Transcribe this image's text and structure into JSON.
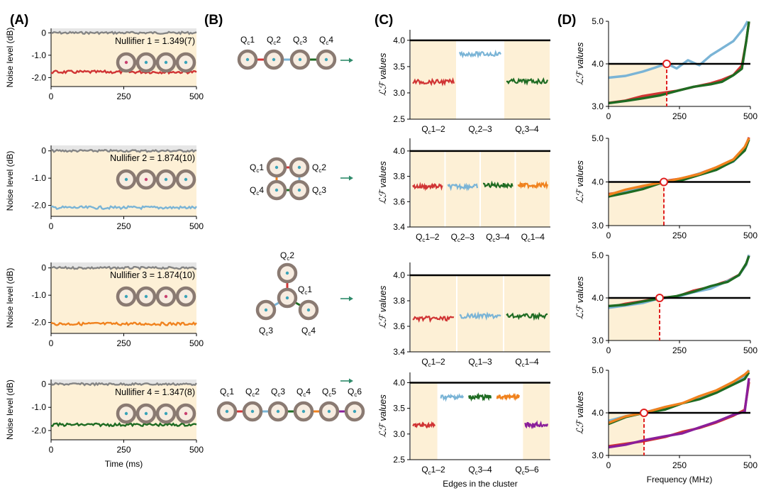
{
  "colors": {
    "red": "#d03434",
    "blue": "#7ab4d6",
    "orange": "#f0821e",
    "green": "#1e6b22",
    "purple": "#8a1e9a",
    "gray": "#848484",
    "shade": "#fdf0d6",
    "shade_gray": "#e6e6e6",
    "arrow": "#2e8a6a"
  },
  "panels": {
    "A": {
      "label": "(A)"
    },
    "B": {
      "label": "(B)"
    },
    "C": {
      "label": "(C)"
    },
    "D": {
      "label": "(D)"
    }
  },
  "chart_data": [
    {
      "panel": "A",
      "type": "line",
      "row": 1,
      "ylabel": "Noise level (dB)",
      "xlabel": "",
      "xlim": [
        0,
        500
      ],
      "ylim": [
        -2.4,
        0.2
      ],
      "xticks": [
        "0",
        "250",
        "500"
      ],
      "yticks": [
        "0",
        "-1.0",
        "-2.0"
      ],
      "annotation": "Nullifier 1 = 1.349(7)",
      "series": [
        {
          "color": "gray",
          "y": 0.0
        },
        {
          "color": "red",
          "y": -1.75
        }
      ]
    },
    {
      "panel": "A",
      "type": "line",
      "row": 2,
      "ylabel": "Noise level (dB)",
      "xlabel": "",
      "xlim": [
        0,
        500
      ],
      "ylim": [
        -2.4,
        0.2
      ],
      "xticks": [
        "0",
        "250",
        "500"
      ],
      "yticks": [
        "0",
        "-1.0",
        "-2.0"
      ],
      "annotation": "Nullifier 2 = 1.874(10)",
      "series": [
        {
          "color": "gray",
          "y": 0.0
        },
        {
          "color": "blue",
          "y": -2.08
        }
      ]
    },
    {
      "panel": "A",
      "type": "line",
      "row": 3,
      "ylabel": "Noise level (dB)",
      "xlabel": "",
      "xlim": [
        0,
        500
      ],
      "ylim": [
        -2.4,
        0.2
      ],
      "xticks": [
        "0",
        "250",
        "500"
      ],
      "yticks": [
        "0",
        "-1.0",
        "-2.0"
      ],
      "annotation": "Nullifier 3 = 1.874(10)",
      "series": [
        {
          "color": "gray",
          "y": 0.0
        },
        {
          "color": "orange",
          "y": -2.05
        }
      ]
    },
    {
      "panel": "A",
      "type": "line",
      "row": 4,
      "ylabel": "Noise level (dB)",
      "xlabel": "Time (ms)",
      "xlim": [
        0,
        500
      ],
      "ylim": [
        -2.4,
        0.2
      ],
      "xticks": [
        "0",
        "250",
        "500"
      ],
      "yticks": [
        "0",
        "-1.0",
        "-2.0"
      ],
      "annotation": "Nullifier 4 = 1.347(8)",
      "series": [
        {
          "color": "gray",
          "y": 0.0
        },
        {
          "color": "green",
          "y": -1.75
        }
      ]
    },
    {
      "panel": "C",
      "type": "line",
      "row": 1,
      "ylabel": "ℒℱ values",
      "xlabel": "",
      "ylim": [
        2.5,
        4.2
      ],
      "yticks": [
        "2.5",
        "3.0",
        "3.5",
        "4.0"
      ],
      "threshold": 4.0,
      "categories": [
        "Qc1–2",
        "Qc2–3",
        "Qc3–4"
      ],
      "series": [
        {
          "color": "red",
          "value": 3.21
        },
        {
          "color": "blue",
          "value": 3.74
        },
        {
          "color": "green",
          "value": 3.22
        }
      ]
    },
    {
      "panel": "C",
      "type": "line",
      "row": 2,
      "ylabel": "ℒℱ values",
      "xlabel": "",
      "ylim": [
        3.4,
        4.1
      ],
      "yticks": [
        "3.4",
        "3.6",
        "3.8",
        "4.0"
      ],
      "threshold": 4.0,
      "categories": [
        "Qc1–2",
        "Qc2–3",
        "Qc3–4",
        "Qc1–4"
      ],
      "series": [
        {
          "color": "red",
          "value": 3.72
        },
        {
          "color": "blue",
          "value": 3.72
        },
        {
          "color": "green",
          "value": 3.73
        },
        {
          "color": "orange",
          "value": 3.73
        }
      ]
    },
    {
      "panel": "C",
      "type": "line",
      "row": 3,
      "ylabel": "ℒℱ values",
      "xlabel": "",
      "ylim": [
        3.4,
        4.1
      ],
      "yticks": [
        "3.4",
        "3.6",
        "3.8",
        "4.0"
      ],
      "threshold": 4.0,
      "categories": [
        "Qc1–2",
        "Qc1–3",
        "Qc1–4"
      ],
      "series": [
        {
          "color": "red",
          "value": 3.66
        },
        {
          "color": "blue",
          "value": 3.68
        },
        {
          "color": "green",
          "value": 3.68
        }
      ]
    },
    {
      "panel": "C",
      "type": "line",
      "row": 4,
      "ylabel": "ℒℱ values",
      "xlabel": "Edges in the cluster",
      "ylim": [
        2.5,
        4.2
      ],
      "yticks": [
        "2.5",
        "3.0",
        "3.5",
        "4.0"
      ],
      "threshold": 4.0,
      "categories": [
        "Qc1–2",
        "Qc3–4",
        "Qc5–6"
      ],
      "series": [
        {
          "color": "red",
          "value": 3.17
        },
        {
          "color": "blue",
          "value": 3.72
        },
        {
          "color": "green",
          "value": 3.72
        },
        {
          "color": "orange",
          "value": 3.72
        },
        {
          "color": "purple",
          "value": 3.18
        }
      ]
    },
    {
      "panel": "D",
      "type": "line",
      "row": 1,
      "ylabel": "ℒℱ values",
      "xlabel": "",
      "xlim": [
        0,
        500
      ],
      "ylim": [
        3.0,
        5.0
      ],
      "xticks": [
        "0",
        "250",
        "500"
      ],
      "yticks": [
        "3.0",
        "4.0",
        "5.0"
      ],
      "threshold": 4.0,
      "crossing_x": 205,
      "series": [
        {
          "color": "blue",
          "x": [
            0,
            60,
            120,
            160,
            205,
            240,
            280,
            320,
            360,
            400,
            440,
            475,
            490
          ],
          "y": [
            3.65,
            3.7,
            3.8,
            3.92,
            4.0,
            3.9,
            4.1,
            3.98,
            4.18,
            4.35,
            4.55,
            4.8,
            5.0
          ]
        },
        {
          "color": "red",
          "x": [
            0,
            60,
            120,
            180,
            240,
            300,
            360,
            400,
            440,
            470,
            485,
            495
          ],
          "y": [
            3.1,
            3.15,
            3.22,
            3.3,
            3.38,
            3.45,
            3.55,
            3.62,
            3.75,
            3.95,
            4.5,
            5.0
          ]
        },
        {
          "color": "green",
          "x": [
            0,
            60,
            120,
            180,
            240,
            300,
            360,
            400,
            440,
            470,
            485,
            495
          ],
          "y": [
            3.08,
            3.12,
            3.2,
            3.28,
            3.36,
            3.44,
            3.54,
            3.6,
            3.72,
            3.9,
            4.5,
            5.0
          ]
        }
      ]
    },
    {
      "panel": "D",
      "type": "line",
      "row": 2,
      "ylabel": "ℒℱ values",
      "xlabel": "",
      "xlim": [
        0,
        500
      ],
      "ylim": [
        3.0,
        5.0
      ],
      "xticks": [
        "0",
        "250",
        "500"
      ],
      "yticks": [
        "3.0",
        "4.0",
        "5.0"
      ],
      "threshold": 4.0,
      "crossing_x": 195,
      "series": [
        {
          "color": "red",
          "x": [
            0,
            60,
            120,
            195,
            260,
            320,
            380,
            440,
            480,
            495
          ],
          "y": [
            3.7,
            3.78,
            3.88,
            4.0,
            4.08,
            4.2,
            4.32,
            4.5,
            4.75,
            5.0
          ]
        },
        {
          "color": "blue",
          "x": [
            0,
            60,
            120,
            195,
            260,
            320,
            380,
            440,
            480,
            495
          ],
          "y": [
            3.68,
            3.8,
            3.86,
            4.0,
            4.04,
            4.18,
            4.3,
            4.48,
            4.72,
            5.0
          ]
        },
        {
          "color": "green",
          "x": [
            0,
            60,
            120,
            195,
            260,
            320,
            380,
            440,
            480,
            495
          ],
          "y": [
            3.66,
            3.76,
            3.85,
            4.0,
            4.06,
            4.16,
            4.28,
            4.46,
            4.7,
            4.95
          ]
        },
        {
          "color": "orange",
          "x": [
            0,
            60,
            120,
            195,
            260,
            320,
            380,
            440,
            480,
            495
          ],
          "y": [
            3.72,
            3.8,
            3.9,
            4.0,
            4.1,
            4.2,
            4.34,
            4.52,
            4.78,
            5.0
          ]
        }
      ]
    },
    {
      "panel": "D",
      "type": "line",
      "row": 3,
      "ylabel": "ℒℱ values",
      "xlabel": "",
      "xlim": [
        0,
        500
      ],
      "ylim": [
        3.0,
        5.0
      ],
      "xticks": [
        "0",
        "250",
        "500"
      ],
      "yticks": [
        "3.0",
        "4.0",
        "5.0"
      ],
      "threshold": 4.0,
      "crossing_x": 180,
      "series": [
        {
          "color": "red",
          "x": [
            0,
            60,
            120,
            180,
            240,
            300,
            360,
            420,
            460,
            485,
            495
          ],
          "y": [
            3.8,
            3.85,
            3.92,
            4.0,
            4.05,
            4.15,
            4.25,
            4.4,
            4.55,
            4.8,
            5.0
          ]
        },
        {
          "color": "blue",
          "x": [
            0,
            60,
            120,
            180,
            240,
            300,
            360,
            420,
            460,
            485,
            495
          ],
          "y": [
            3.78,
            3.84,
            3.9,
            4.0,
            4.02,
            4.14,
            4.24,
            4.38,
            4.55,
            4.8,
            5.0
          ]
        },
        {
          "color": "green",
          "x": [
            0,
            60,
            120,
            180,
            240,
            300,
            360,
            420,
            460,
            485,
            495
          ],
          "y": [
            3.79,
            3.86,
            3.91,
            4.0,
            4.04,
            4.16,
            4.26,
            4.4,
            4.56,
            4.82,
            5.0
          ]
        }
      ]
    },
    {
      "panel": "D",
      "type": "line",
      "row": 4,
      "ylabel": "ℒℱ values",
      "xlabel": "Frequency (MHz)",
      "xlim": [
        0,
        500
      ],
      "ylim": [
        3.0,
        5.0
      ],
      "xticks": [
        "0",
        "250",
        "500"
      ],
      "yticks": [
        "3.0",
        "4.0",
        "5.0"
      ],
      "threshold": 4.0,
      "crossing_x": 125,
      "series": [
        {
          "color": "blue",
          "x": [
            0,
            60,
            125,
            200,
            260,
            320,
            380,
            440,
            480,
            495
          ],
          "y": [
            3.8,
            3.9,
            4.0,
            4.12,
            4.22,
            4.35,
            4.5,
            4.7,
            4.85,
            5.0
          ]
        },
        {
          "color": "green",
          "x": [
            0,
            60,
            125,
            200,
            260,
            320,
            380,
            440,
            480,
            495
          ],
          "y": [
            3.76,
            3.88,
            4.0,
            4.1,
            4.2,
            4.34,
            4.48,
            4.68,
            4.82,
            4.95
          ]
        },
        {
          "color": "orange",
          "x": [
            0,
            60,
            125,
            200,
            260,
            320,
            380,
            440,
            480,
            495
          ],
          "y": [
            3.78,
            3.9,
            4.02,
            4.14,
            4.24,
            4.38,
            4.52,
            4.72,
            4.88,
            5.0
          ]
        },
        {
          "color": "red",
          "x": [
            0,
            60,
            125,
            200,
            260,
            320,
            380,
            440,
            480,
            495
          ],
          "y": [
            3.2,
            3.28,
            3.36,
            3.45,
            3.55,
            3.65,
            3.78,
            3.95,
            4.05,
            4.7
          ]
        },
        {
          "color": "purple",
          "x": [
            0,
            60,
            125,
            200,
            260,
            320,
            380,
            440,
            480,
            495
          ],
          "y": [
            3.18,
            3.26,
            3.35,
            3.44,
            3.54,
            3.64,
            3.77,
            3.94,
            4.04,
            4.8
          ]
        }
      ]
    }
  ],
  "diagrams": [
    {
      "row": 1,
      "labels": [
        "Qc1",
        "Qc2",
        "Qc3",
        "Qc4"
      ]
    },
    {
      "row": 2,
      "labels": [
        "Qc1",
        "Qc2",
        "Qc4",
        "Qc3"
      ]
    },
    {
      "row": 3,
      "labels": [
        "Qc2",
        "Qc1",
        "Qc3",
        "Qc4"
      ]
    },
    {
      "row": 4,
      "labels": [
        "Qc1",
        "Qc2",
        "Qc3",
        "Qc4",
        "Qc5",
        "Qc6"
      ]
    }
  ]
}
